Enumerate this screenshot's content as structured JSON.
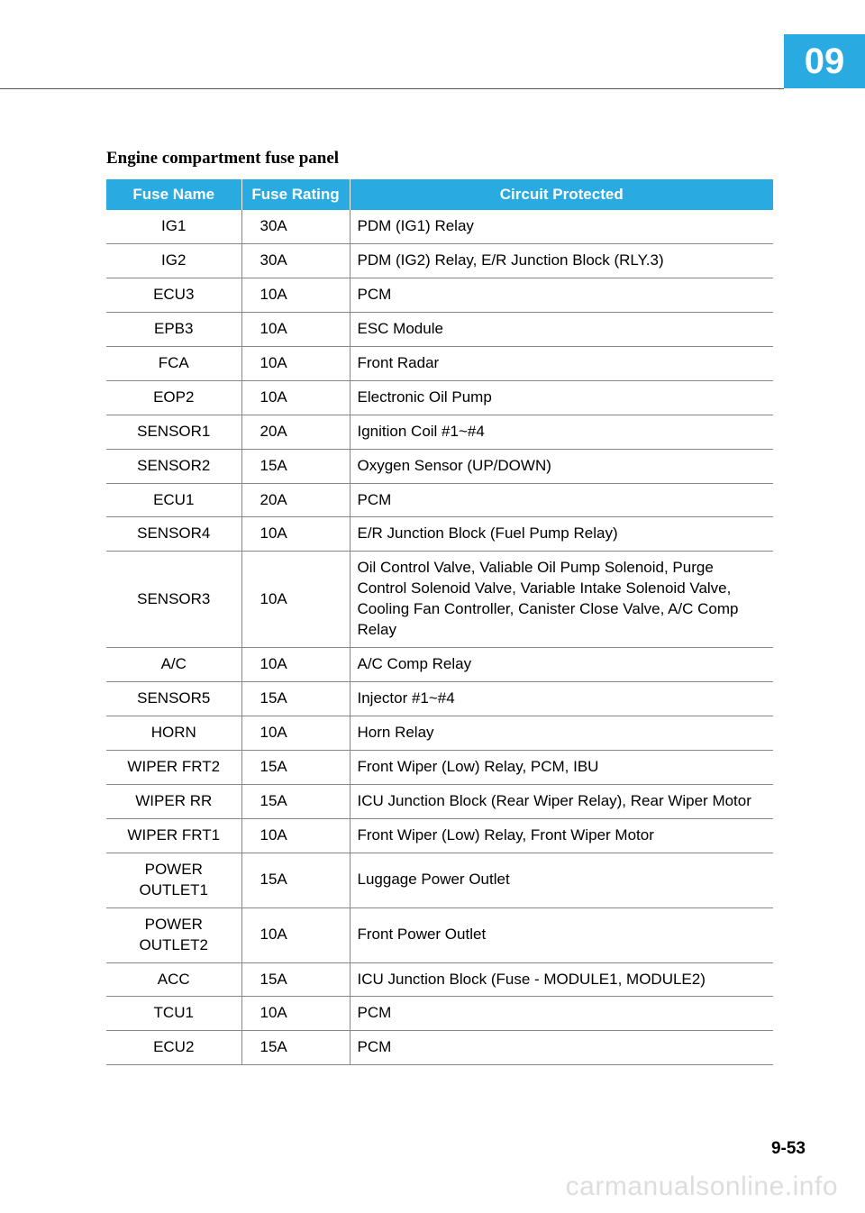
{
  "chapter_number": "09",
  "section_title": "Engine compartment fuse panel",
  "table": {
    "columns": [
      "Fuse Name",
      "Fuse Rating",
      "Circuit Protected"
    ],
    "rows": [
      {
        "name": "IG1",
        "rating": "30A",
        "circuit": "PDM (IG1) Relay"
      },
      {
        "name": "IG2",
        "rating": "30A",
        "circuit": "PDM (IG2) Relay, E/R Junction Block (RLY.3)"
      },
      {
        "name": "ECU3",
        "rating": "10A",
        "circuit": "PCM"
      },
      {
        "name": "EPB3",
        "rating": "10A",
        "circuit": "ESC Module"
      },
      {
        "name": "FCA",
        "rating": "10A",
        "circuit": "Front Radar"
      },
      {
        "name": "EOP2",
        "rating": "10A",
        "circuit": "Electronic Oil Pump"
      },
      {
        "name": "SENSOR1",
        "rating": "20A",
        "circuit": "Ignition Coil #1~#4"
      },
      {
        "name": "SENSOR2",
        "rating": "15A",
        "circuit": "Oxygen Sensor (UP/DOWN)"
      },
      {
        "name": "ECU1",
        "rating": "20A",
        "circuit": "PCM"
      },
      {
        "name": "SENSOR4",
        "rating": "10A",
        "circuit": "E/R Junction Block (Fuel Pump Relay)"
      },
      {
        "name": "SENSOR3",
        "rating": "10A",
        "circuit": "Oil Control Valve, Valiable Oil Pump Solenoid, Purge Control Solenoid Valve, Variable Intake Solenoid Valve, Cooling Fan Controller, Canister Close Valve, A/C Comp Relay"
      },
      {
        "name": "A/C",
        "rating": "10A",
        "circuit": "A/C Comp Relay"
      },
      {
        "name": "SENSOR5",
        "rating": "15A",
        "circuit": "Injector #1~#4"
      },
      {
        "name": "HORN",
        "rating": "10A",
        "circuit": "Horn Relay"
      },
      {
        "name": "WIPER FRT2",
        "rating": "15A",
        "circuit": "Front Wiper (Low) Relay, PCM, IBU"
      },
      {
        "name": "WIPER RR",
        "rating": "15A",
        "circuit": "ICU Junction Block (Rear Wiper Relay), Rear Wiper Motor"
      },
      {
        "name": "WIPER FRT1",
        "rating": "10A",
        "circuit": "Front Wiper (Low) Relay, Front Wiper Motor"
      },
      {
        "name": "POWER OUTLET1",
        "rating": "15A",
        "circuit": "Luggage Power Outlet"
      },
      {
        "name": "POWER OUTLET2",
        "rating": "10A",
        "circuit": "Front Power Outlet"
      },
      {
        "name": "ACC",
        "rating": "15A",
        "circuit": "ICU Junction Block (Fuse - MODULE1, MODULE2)"
      },
      {
        "name": "TCU1",
        "rating": "10A",
        "circuit": "PCM"
      },
      {
        "name": "ECU2",
        "rating": "15A",
        "circuit": "PCM"
      }
    ]
  },
  "page_number": "9-53",
  "watermark": "carmanualsonline.info"
}
